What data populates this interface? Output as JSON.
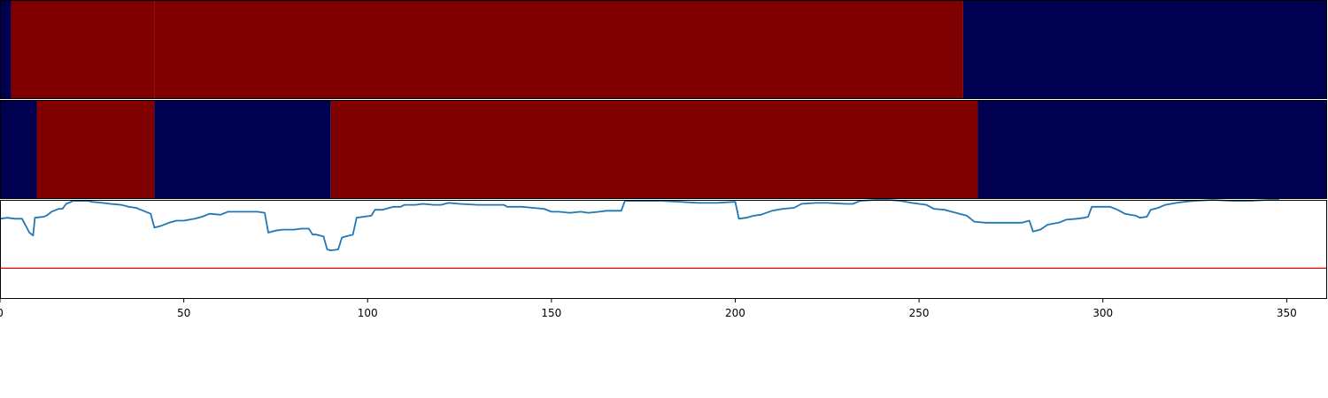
{
  "chart_data": [
    {
      "type": "heatmap",
      "xlim": [
        0,
        361
      ],
      "segments": [
        {
          "start": 0,
          "end": 3,
          "state": "low"
        },
        {
          "start": 3,
          "end": 42,
          "state": "high"
        },
        {
          "start": 42,
          "end": 262,
          "state": "high-dark"
        },
        {
          "start": 262,
          "end": 361,
          "state": "low"
        }
      ]
    },
    {
      "type": "heatmap",
      "xlim": [
        0,
        361
      ],
      "segments": [
        {
          "start": 0,
          "end": 10,
          "state": "low"
        },
        {
          "start": 10,
          "end": 42,
          "state": "high"
        },
        {
          "start": 42,
          "end": 90,
          "state": "low"
        },
        {
          "start": 90,
          "end": 266,
          "state": "high"
        },
        {
          "start": 266,
          "end": 361,
          "state": "low"
        }
      ]
    },
    {
      "type": "line",
      "xlim": [
        0,
        361
      ],
      "ylim": [
        0,
        1
      ],
      "xticks": [
        0,
        50,
        100,
        150,
        200,
        250,
        300,
        350
      ],
      "threshold": 0.31,
      "series": [
        {
          "color": "#1f77b4",
          "points": [
            [
              0,
              0.81
            ],
            [
              2,
              0.82
            ],
            [
              4,
              0.81
            ],
            [
              6,
              0.81
            ],
            [
              8,
              0.67
            ],
            [
              9,
              0.64
            ],
            [
              9.5,
              0.82
            ],
            [
              12,
              0.83
            ],
            [
              13,
              0.85
            ],
            [
              14,
              0.88
            ],
            [
              16,
              0.91
            ],
            [
              17,
              0.91
            ],
            [
              18,
              0.96
            ],
            [
              20,
              0.99
            ],
            [
              22,
              0.99
            ],
            [
              24,
              0.99
            ],
            [
              25,
              0.98
            ],
            [
              28,
              0.97
            ],
            [
              30,
              0.96
            ],
            [
              33,
              0.95
            ],
            [
              35,
              0.93
            ],
            [
              37,
              0.92
            ],
            [
              39,
              0.89
            ],
            [
              41,
              0.86
            ],
            [
              42,
              0.72
            ],
            [
              44,
              0.74
            ],
            [
              46,
              0.77
            ],
            [
              48,
              0.79
            ],
            [
              50,
              0.79
            ],
            [
              53,
              0.81
            ],
            [
              55,
              0.83
            ],
            [
              57,
              0.86
            ],
            [
              60,
              0.85
            ],
            [
              62,
              0.88
            ],
            [
              65,
              0.88
            ],
            [
              68,
              0.88
            ],
            [
              70,
              0.88
            ],
            [
              72,
              0.87
            ],
            [
              73,
              0.67
            ],
            [
              75,
              0.69
            ],
            [
              77,
              0.7
            ],
            [
              80,
              0.7
            ],
            [
              82,
              0.71
            ],
            [
              84,
              0.71
            ],
            [
              85,
              0.65
            ],
            [
              86,
              0.65
            ],
            [
              88,
              0.63
            ],
            [
              89,
              0.5
            ],
            [
              90,
              0.49
            ],
            [
              92,
              0.5
            ],
            [
              93,
              0.62
            ],
            [
              94,
              0.63
            ],
            [
              96,
              0.65
            ],
            [
              97,
              0.82
            ],
            [
              99,
              0.83
            ],
            [
              101,
              0.84
            ],
            [
              102,
              0.9
            ],
            [
              104,
              0.9
            ],
            [
              105,
              0.91
            ],
            [
              107,
              0.93
            ],
            [
              109,
              0.93
            ],
            [
              110,
              0.95
            ],
            [
              113,
              0.95
            ],
            [
              115,
              0.96
            ],
            [
              118,
              0.95
            ],
            [
              120,
              0.95
            ],
            [
              122,
              0.97
            ],
            [
              125,
              0.96
            ],
            [
              130,
              0.95
            ],
            [
              135,
              0.95
            ],
            [
              137,
              0.95
            ],
            [
              138,
              0.93
            ],
            [
              142,
              0.93
            ],
            [
              145,
              0.92
            ],
            [
              148,
              0.91
            ],
            [
              150,
              0.88
            ],
            [
              152,
              0.88
            ],
            [
              155,
              0.87
            ],
            [
              158,
              0.88
            ],
            [
              160,
              0.87
            ],
            [
              163,
              0.88
            ],
            [
              165,
              0.89
            ],
            [
              168,
              0.89
            ],
            [
              169,
              0.89
            ],
            [
              170,
              0.99
            ],
            [
              175,
              0.99
            ],
            [
              180,
              0.99
            ],
            [
              185,
              0.98
            ],
            [
              190,
              0.97
            ],
            [
              195,
              0.97
            ],
            [
              200,
              0.98
            ],
            [
              201,
              0.81
            ],
            [
              203,
              0.82
            ],
            [
              205,
              0.84
            ],
            [
              207,
              0.85
            ],
            [
              210,
              0.89
            ],
            [
              213,
              0.91
            ],
            [
              216,
              0.92
            ],
            [
              218,
              0.96
            ],
            [
              222,
              0.97
            ],
            [
              225,
              0.97
            ],
            [
              230,
              0.96
            ],
            [
              232,
              0.96
            ],
            [
              234,
              0.99
            ],
            [
              238,
              1.0
            ],
            [
              242,
              1.0
            ],
            [
              245,
              0.99
            ],
            [
              248,
              0.97
            ],
            [
              252,
              0.95
            ],
            [
              254,
              0.91
            ],
            [
              257,
              0.9
            ],
            [
              260,
              0.87
            ],
            [
              263,
              0.84
            ],
            [
              265,
              0.78
            ],
            [
              268,
              0.77
            ],
            [
              272,
              0.77
            ],
            [
              276,
              0.77
            ],
            [
              278,
              0.77
            ],
            [
              280,
              0.79
            ],
            [
              281,
              0.68
            ],
            [
              283,
              0.7
            ],
            [
              285,
              0.75
            ],
            [
              288,
              0.77
            ],
            [
              290,
              0.8
            ],
            [
              293,
              0.81
            ],
            [
              295,
              0.82
            ],
            [
              296,
              0.83
            ],
            [
              297,
              0.93
            ],
            [
              300,
              0.93
            ],
            [
              302,
              0.93
            ],
            [
              304,
              0.9
            ],
            [
              306,
              0.86
            ],
            [
              309,
              0.84
            ],
            [
              310,
              0.82
            ],
            [
              312,
              0.83
            ],
            [
              313,
              0.9
            ],
            [
              315,
              0.92
            ],
            [
              317,
              0.95
            ],
            [
              320,
              0.97
            ],
            [
              322,
              0.98
            ],
            [
              325,
              0.99
            ],
            [
              330,
              1.0
            ],
            [
              335,
              0.99
            ],
            [
              340,
              0.99
            ],
            [
              345,
              1.0
            ],
            [
              348,
              1.0
            ]
          ]
        }
      ]
    }
  ],
  "colors": {
    "high": "#800000",
    "high-dark": "#7f0000",
    "low": "#000050",
    "line": "#1f77b4",
    "threshold": "#d62728"
  }
}
